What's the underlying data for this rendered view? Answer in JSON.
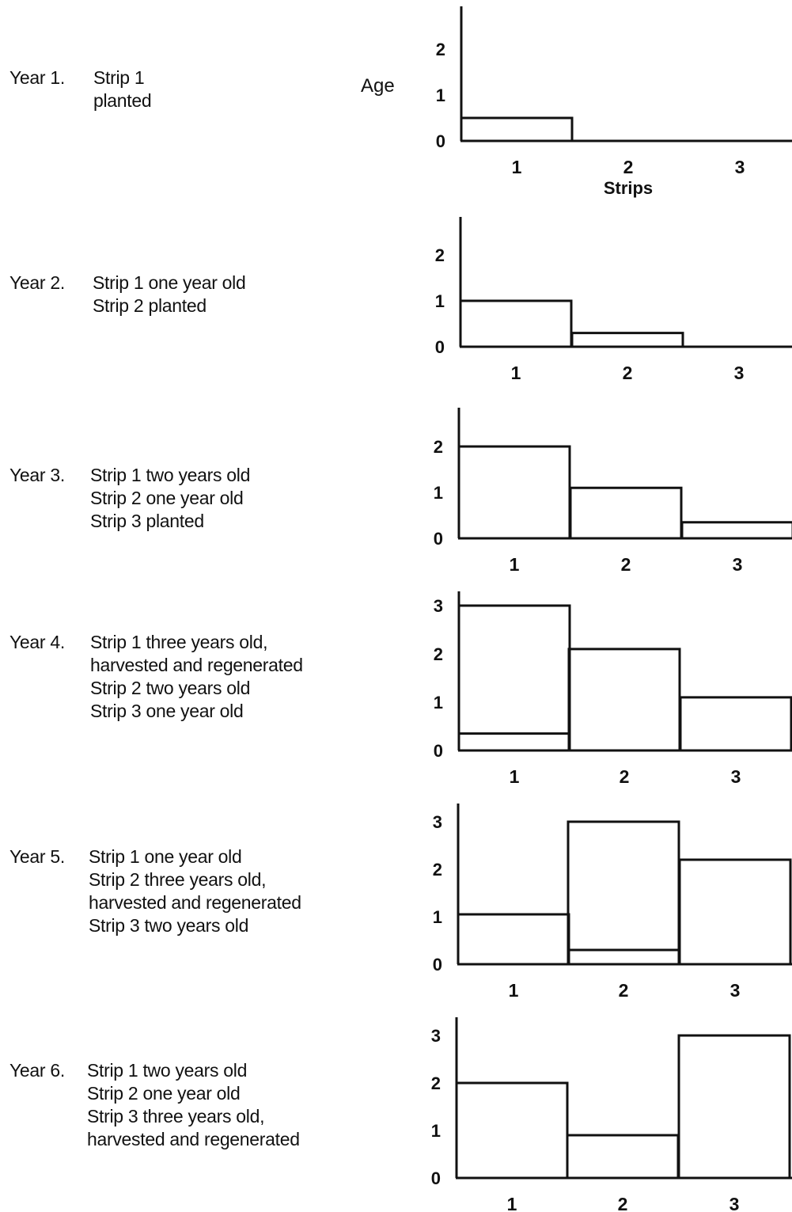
{
  "figure": {
    "y_axis_label": "Age",
    "x_axis_label": "Strips"
  },
  "rows": [
    {
      "year": "Year 1.",
      "lines": [
        "Strip 1",
        "planted"
      ]
    },
    {
      "year": "Year 2.",
      "lines": [
        "Strip 1 one year old",
        "Strip 2 planted"
      ]
    },
    {
      "year": "Year 3.",
      "lines": [
        "Strip 1 two years old",
        "Strip 2 one year old",
        "Strip 3 planted"
      ]
    },
    {
      "year": "Year 4.",
      "lines": [
        "Strip 1 three years old,",
        "harvested and regenerated",
        "Strip 2 two years old",
        "Strip 3 one year old"
      ]
    },
    {
      "year": "Year 5.",
      "lines": [
        "Strip 1 one year old",
        "Strip 2 three years old,",
        "harvested and regenerated",
        "Strip 3 two years old"
      ]
    },
    {
      "year": "Year 6.",
      "lines": [
        "Strip 1 two years old",
        "Strip 2 one year old",
        "Strip 3 three years old,",
        "harvested and regenerated"
      ]
    }
  ],
  "chart_data": [
    {
      "type": "bar",
      "categories": [
        "1",
        "2",
        "3"
      ],
      "values": [
        0.5,
        0,
        0
      ],
      "regenerated": [
        null,
        null,
        null
      ],
      "yticks": [
        "0",
        "1",
        "2"
      ],
      "ylim": [
        0,
        2.3
      ],
      "xlabel": "Strips",
      "ylabel": "Age"
    },
    {
      "type": "bar",
      "categories": [
        "1",
        "2",
        "3"
      ],
      "values": [
        1,
        0.3,
        0
      ],
      "regenerated": [
        null,
        null,
        null
      ],
      "yticks": [
        "0",
        "1",
        "2"
      ],
      "ylim": [
        0,
        2.3
      ],
      "xlabel": "",
      "ylabel": ""
    },
    {
      "type": "bar",
      "categories": [
        "1",
        "2",
        "3"
      ],
      "values": [
        2,
        1.1,
        0.35
      ],
      "regenerated": [
        null,
        null,
        null
      ],
      "yticks": [
        "0",
        "1",
        "2"
      ],
      "ylim": [
        0,
        2.3
      ],
      "xlabel": "",
      "ylabel": ""
    },
    {
      "type": "bar",
      "categories": [
        "1",
        "2",
        "3"
      ],
      "values": [
        3,
        2.1,
        1.1
      ],
      "regenerated": [
        0.35,
        null,
        null
      ],
      "yticks": [
        "0",
        "1",
        "2",
        "3"
      ],
      "ylim": [
        0,
        3.3
      ],
      "xlabel": "",
      "ylabel": ""
    },
    {
      "type": "bar",
      "categories": [
        "1",
        "2",
        "3"
      ],
      "values": [
        1.05,
        3,
        2.2
      ],
      "regenerated": [
        null,
        0.3,
        null
      ],
      "yticks": [
        "0",
        "1",
        "2",
        "3"
      ],
      "ylim": [
        0,
        3.3
      ],
      "xlabel": "",
      "ylabel": ""
    },
    {
      "type": "bar",
      "categories": [
        "1",
        "2",
        "3"
      ],
      "values": [
        2,
        0.9,
        3
      ],
      "regenerated": [
        null,
        null,
        null
      ],
      "yticks": [
        "0",
        "1",
        "2",
        "3"
      ],
      "ylim": [
        0,
        3.3
      ],
      "xlabel": "",
      "ylabel": ""
    }
  ]
}
